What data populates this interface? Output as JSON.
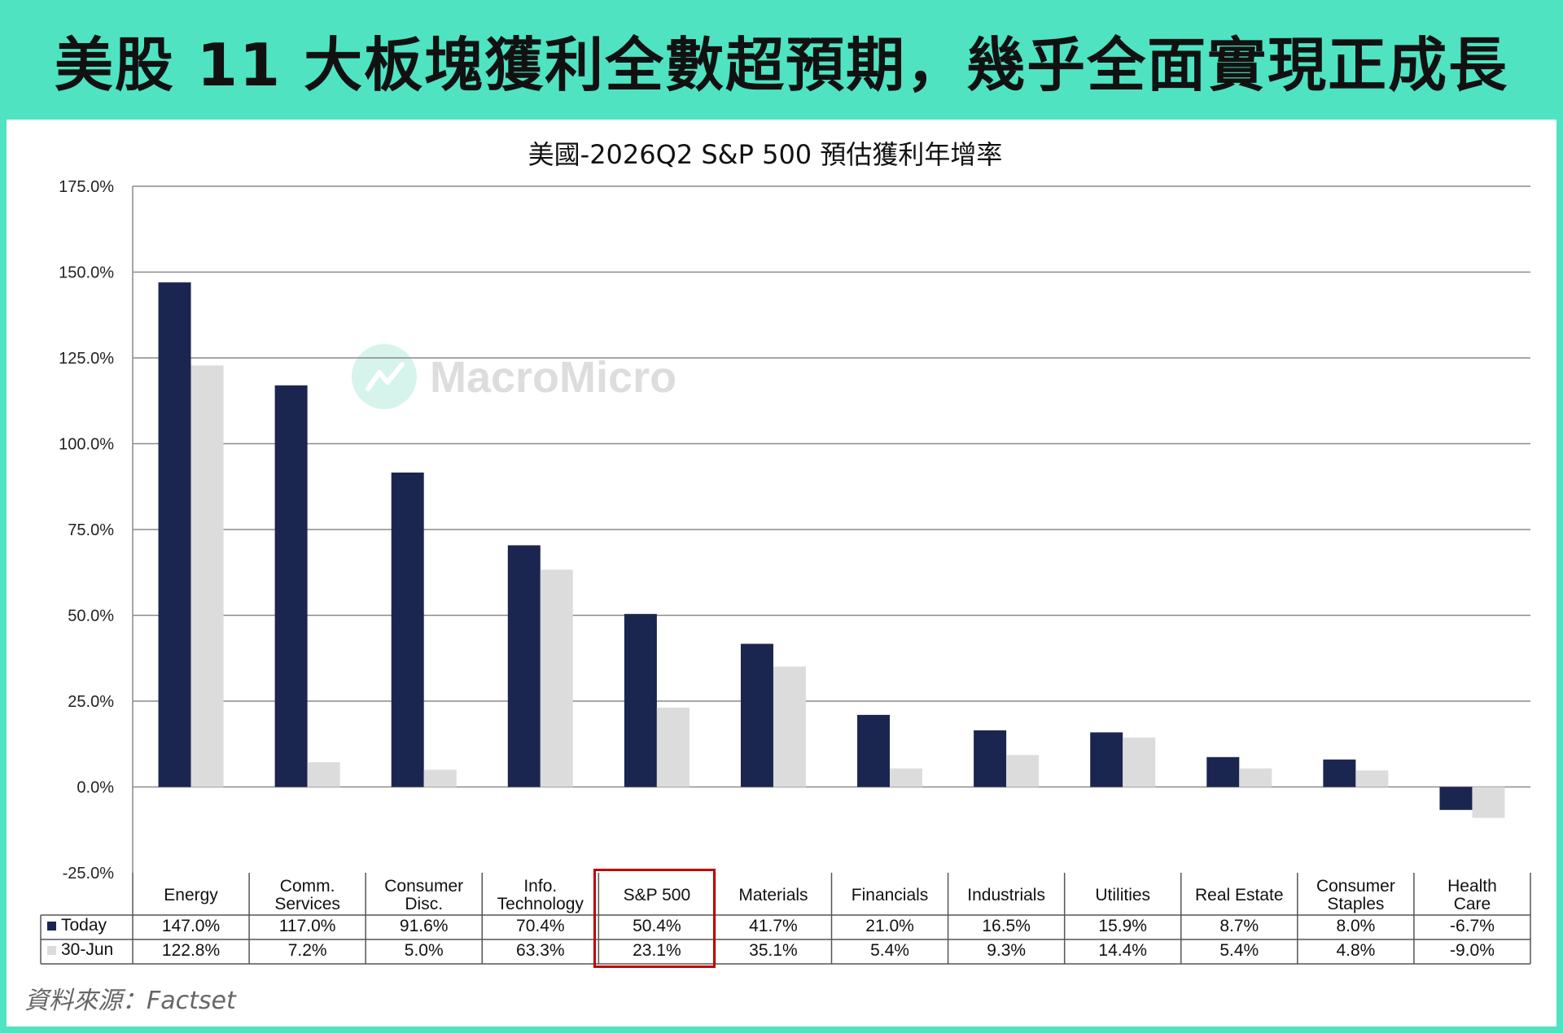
{
  "headline": "美股 11 大板塊獲利全數超預期，幾乎全面實現正成長",
  "source": "資料來源：Factset",
  "watermark": "MacroMicro",
  "colors": {
    "accent": "#4fe3c1",
    "today": "#1b2650",
    "june": "#dcdcdc",
    "highlight": "#c00000"
  },
  "chart_data": {
    "type": "bar",
    "title": "美國-2026Q2 S&P 500 預估獲利年增率",
    "ylim": [
      -25,
      175
    ],
    "yticks": [
      "175.0%",
      "150.0%",
      "125.0%",
      "100.0%",
      "75.0%",
      "50.0%",
      "25.0%",
      "0.0%",
      "-25.0%"
    ],
    "ytick_values": [
      175,
      150,
      125,
      100,
      75,
      50,
      25,
      0,
      -25
    ],
    "categories": [
      [
        "Energy"
      ],
      [
        "Comm.",
        "Services"
      ],
      [
        "Consumer",
        "Disc."
      ],
      [
        "Info.",
        "Technology"
      ],
      [
        "S&P 500"
      ],
      [
        "Materials"
      ],
      [
        "Financials"
      ],
      [
        "Industrials"
      ],
      [
        "Utilities"
      ],
      [
        "Real Estate"
      ],
      [
        "Consumer",
        "Staples"
      ],
      [
        "Health",
        "Care"
      ]
    ],
    "series": [
      {
        "name": "Today",
        "values": [
          147.0,
          117.0,
          91.6,
          70.4,
          50.4,
          41.7,
          21.0,
          16.5,
          15.9,
          8.7,
          8.0,
          -6.7
        ],
        "labels": [
          "147.0%",
          "117.0%",
          "91.6%",
          "70.4%",
          "50.4%",
          "41.7%",
          "21.0%",
          "16.5%",
          "15.9%",
          "8.7%",
          "8.0%",
          "-6.7%"
        ]
      },
      {
        "name": "30-Jun",
        "values": [
          122.8,
          7.2,
          5.0,
          63.3,
          23.1,
          35.1,
          5.4,
          9.3,
          14.4,
          5.4,
          4.8,
          -9.0
        ],
        "labels": [
          "122.8%",
          "7.2%",
          "5.0%",
          "63.3%",
          "23.1%",
          "35.1%",
          "5.4%",
          "9.3%",
          "14.4%",
          "5.4%",
          "4.8%",
          "-9.0%"
        ]
      }
    ],
    "grid": true,
    "legend": "data-table-left",
    "highlight_category": "S&P 500"
  }
}
